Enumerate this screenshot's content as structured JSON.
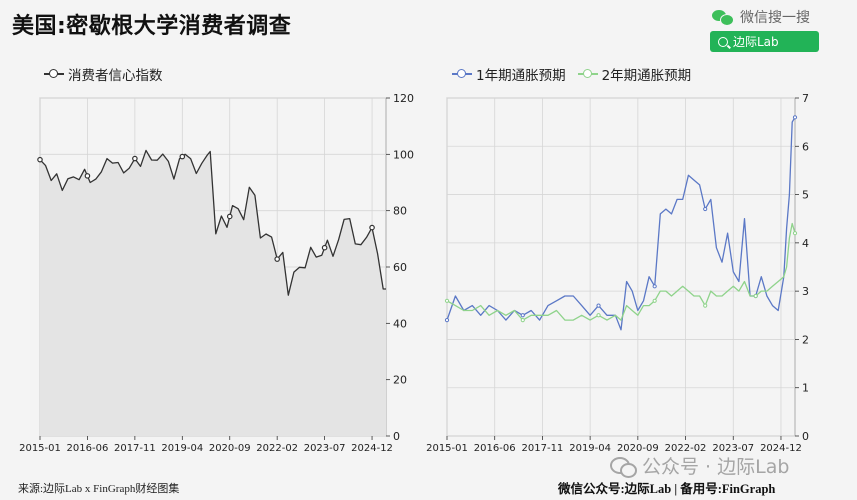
{
  "title": "美国:密歇根大学消费者调查",
  "wechat": {
    "label": "微信搜一搜",
    "search_text": "边际Lab"
  },
  "footer": {
    "source": "来源:边际Lab x FinGraph财经图集",
    "right": "微信公众号:边际Lab | 备用号:FinGraph"
  },
  "watermark": "公众号 · 边际Lab",
  "colors": {
    "sentiment": "#333333",
    "one_year": "#5b78c6",
    "two_year": "#8fd38b",
    "area": "#e4e4e4"
  },
  "chart_data": [
    {
      "type": "area",
      "title": "",
      "x_ticks": [
        "2015-01",
        "2016-06",
        "2017-11",
        "2019-04",
        "2020-09",
        "2022-02",
        "2023-07",
        "2024-12"
      ],
      "ylim": [
        0,
        120
      ],
      "y_ticks": [
        0,
        20,
        40,
        60,
        80,
        100,
        120
      ],
      "y_axis_side": "right",
      "grid": true,
      "legend_position": "top-left",
      "series": [
        {
          "name": "消费者信心指数",
          "x": [
            "2015-01",
            "2015-03",
            "2015-05",
            "2015-07",
            "2015-09",
            "2015-11",
            "2016-01",
            "2016-03",
            "2016-05",
            "2016-07",
            "2016-09",
            "2016-11",
            "2017-01",
            "2017-03",
            "2017-05",
            "2017-07",
            "2017-09",
            "2017-11",
            "2018-01",
            "2018-03",
            "2018-05",
            "2018-07",
            "2018-09",
            "2018-11",
            "2019-01",
            "2019-03",
            "2019-05",
            "2019-07",
            "2019-09",
            "2019-11",
            "2020-01",
            "2020-02",
            "2020-04",
            "2020-06",
            "2020-08",
            "2020-10",
            "2020-12",
            "2021-02",
            "2021-04",
            "2021-06",
            "2021-08",
            "2021-10",
            "2021-12",
            "2022-02",
            "2022-04",
            "2022-06",
            "2022-08",
            "2022-10",
            "2022-12",
            "2023-02",
            "2023-04",
            "2023-06",
            "2023-08",
            "2023-10",
            "2023-12",
            "2024-02",
            "2024-04",
            "2024-06",
            "2024-08",
            "2024-10",
            "2024-12",
            "2025-02",
            "2025-04",
            "2025-05"
          ],
          "values": [
            98.1,
            96,
            90.7,
            93.1,
            87.2,
            91.3,
            92,
            91,
            94.7,
            90,
            91.2,
            93.8,
            98.5,
            96.9,
            97.1,
            93.4,
            95.1,
            98.5,
            95.7,
            101.4,
            98,
            97.9,
            100.1,
            97.5,
            91.2,
            98.4,
            100,
            98.4,
            93.2,
            96.8,
            99.8,
            101,
            71.8,
            78.1,
            74.1,
            81.8,
            80.7,
            76.8,
            88.3,
            85.5,
            70.3,
            71.7,
            70.6,
            62.8,
            65.2,
            50,
            58.2,
            59.9,
            59.7,
            67,
            63.5,
            64.2,
            69.5,
            63.8,
            69.7,
            76.9,
            77.2,
            68.2,
            67.9,
            70.5,
            74,
            64.7,
            52.2,
            52.2
          ],
          "markers_at": [
            "2015-01",
            "2016-06",
            "2017-11",
            "2019-04",
            "2020-09",
            "2022-02",
            "2023-07",
            "2024-12"
          ]
        }
      ]
    },
    {
      "type": "line",
      "title": "",
      "x_ticks": [
        "2015-01",
        "2016-06",
        "2017-11",
        "2019-04",
        "2020-09",
        "2022-02",
        "2023-07",
        "2024-12"
      ],
      "ylim": [
        0,
        7
      ],
      "y_ticks": [
        0,
        1,
        2,
        3,
        4,
        5,
        6,
        7
      ],
      "y_axis_side": "right",
      "grid": true,
      "legend_position": "top-left",
      "series": [
        {
          "name": "1年期通胀预期",
          "x": [
            "2015-01",
            "2015-04",
            "2015-07",
            "2015-10",
            "2016-01",
            "2016-04",
            "2016-07",
            "2016-10",
            "2017-01",
            "2017-04",
            "2017-07",
            "2017-10",
            "2018-01",
            "2018-04",
            "2018-07",
            "2018-10",
            "2019-01",
            "2019-04",
            "2019-07",
            "2019-10",
            "2020-01",
            "2020-03",
            "2020-05",
            "2020-07",
            "2020-09",
            "2020-11",
            "2021-01",
            "2021-03",
            "2021-05",
            "2021-07",
            "2021-09",
            "2021-11",
            "2022-01",
            "2022-03",
            "2022-05",
            "2022-07",
            "2022-09",
            "2022-11",
            "2023-01",
            "2023-03",
            "2023-05",
            "2023-07",
            "2023-09",
            "2023-11",
            "2024-01",
            "2024-03",
            "2024-05",
            "2024-07",
            "2024-09",
            "2024-11",
            "2025-01",
            "2025-02",
            "2025-03",
            "2025-04",
            "2025-05"
          ],
          "values": [
            2.4,
            2.9,
            2.6,
            2.7,
            2.5,
            2.7,
            2.6,
            2.4,
            2.6,
            2.5,
            2.6,
            2.4,
            2.7,
            2.8,
            2.9,
            2.9,
            2.7,
            2.5,
            2.7,
            2.5,
            2.5,
            2.2,
            3.2,
            3,
            2.6,
            2.8,
            3.3,
            3.1,
            4.6,
            4.7,
            4.6,
            4.9,
            4.9,
            5.4,
            5.3,
            5.2,
            4.7,
            4.9,
            3.9,
            3.6,
            4.2,
            3.4,
            3.2,
            4.5,
            2.9,
            2.9,
            3.3,
            2.9,
            2.7,
            2.6,
            3.3,
            4.3,
            5,
            6.5,
            6.6
          ]
        },
        {
          "name": "2年期通胀预期",
          "x": [
            "2015-01",
            "2015-04",
            "2015-07",
            "2015-10",
            "2016-01",
            "2016-04",
            "2016-07",
            "2016-10",
            "2017-01",
            "2017-04",
            "2017-07",
            "2017-10",
            "2018-01",
            "2018-04",
            "2018-07",
            "2018-10",
            "2019-01",
            "2019-04",
            "2019-07",
            "2019-10",
            "2020-01",
            "2020-03",
            "2020-05",
            "2020-07",
            "2020-09",
            "2020-11",
            "2021-01",
            "2021-03",
            "2021-05",
            "2021-07",
            "2021-09",
            "2021-11",
            "2022-01",
            "2022-03",
            "2022-05",
            "2022-07",
            "2022-09",
            "2022-11",
            "2023-01",
            "2023-03",
            "2023-05",
            "2023-07",
            "2023-09",
            "2023-11",
            "2024-01",
            "2024-03",
            "2024-05",
            "2024-07",
            "2024-09",
            "2024-11",
            "2025-01",
            "2025-02",
            "2025-03",
            "2025-04",
            "2025-05"
          ],
          "values": [
            2.8,
            2.7,
            2.6,
            2.6,
            2.7,
            2.5,
            2.6,
            2.5,
            2.6,
            2.4,
            2.5,
            2.5,
            2.5,
            2.6,
            2.4,
            2.4,
            2.5,
            2.4,
            2.5,
            2.4,
            2.5,
            2.4,
            2.7,
            2.6,
            2.5,
            2.7,
            2.7,
            2.8,
            3,
            3,
            2.9,
            3,
            3.1,
            3,
            2.9,
            2.9,
            2.7,
            3,
            2.9,
            2.9,
            3,
            3.1,
            3,
            3.2,
            2.9,
            2.9,
            3,
            3,
            3.1,
            3.2,
            3.3,
            3.5,
            4.1,
            4.4,
            4.2
          ]
        }
      ]
    }
  ]
}
